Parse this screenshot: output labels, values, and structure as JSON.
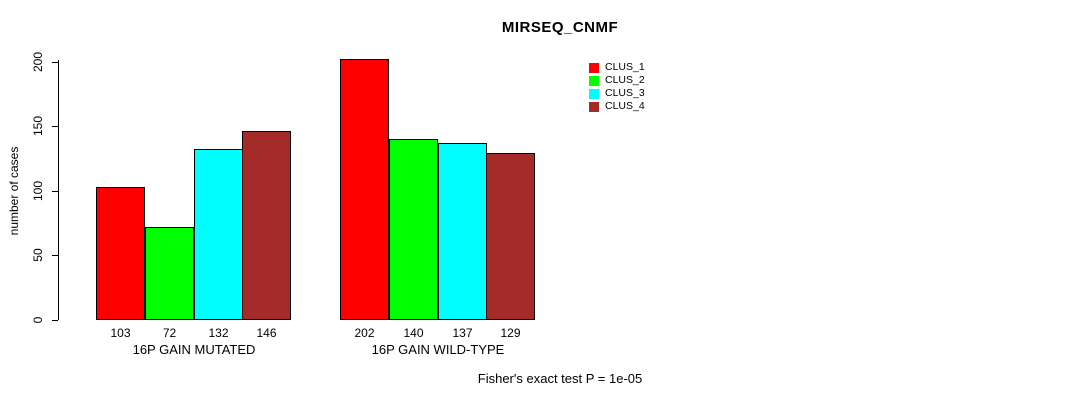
{
  "chart_data": {
    "type": "bar",
    "title": "MIRSEQ_CNMF",
    "ylabel": "number of cases",
    "ylim": [
      0,
      200
    ],
    "yticks": [
      0,
      50,
      100,
      150,
      200
    ],
    "categories": [
      "16P GAIN MUTATED",
      "16P GAIN WILD-TYPE"
    ],
    "series": [
      {
        "name": "CLUS_1",
        "color": "#ff0000",
        "values": [
          103,
          202
        ]
      },
      {
        "name": "CLUS_2",
        "color": "#00ff00",
        "values": [
          72,
          140
        ]
      },
      {
        "name": "CLUS_3",
        "color": "#00ffff",
        "values": [
          132,
          137
        ]
      },
      {
        "name": "CLUS_4",
        "color": "#a52a2a",
        "values": [
          146,
          129
        ]
      }
    ],
    "bar_value_labels": [
      [
        103,
        72,
        132,
        146
      ],
      [
        202,
        140,
        137,
        129
      ]
    ],
    "legend": {
      "position": "top-right",
      "entries": [
        "CLUS_1",
        "CLUS_2",
        "CLUS_3",
        "CLUS_4"
      ]
    },
    "grid": false,
    "footer": "Fisher's exact test P = 1e-05"
  }
}
